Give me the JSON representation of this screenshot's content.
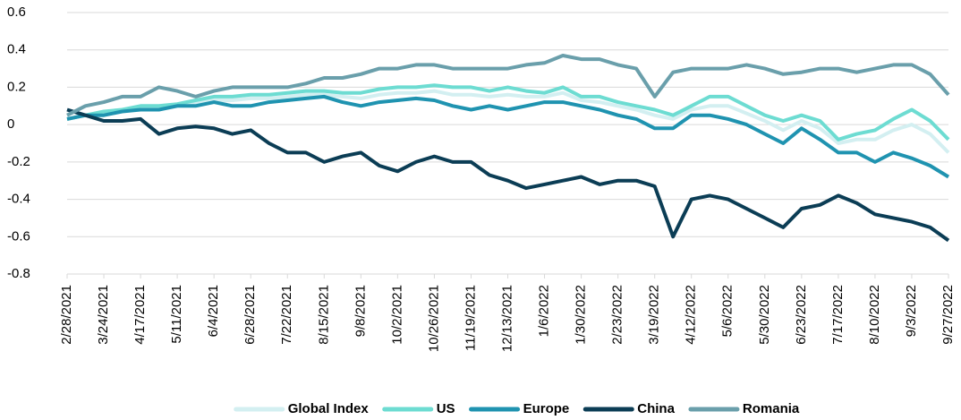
{
  "chart_data": {
    "type": "line",
    "categories": [
      "2/28/2021",
      null,
      "3/24/2021",
      null,
      "4/17/2021",
      null,
      "5/11/2021",
      null,
      "6/4/2021",
      null,
      "6/28/2021",
      null,
      "7/22/2021",
      null,
      "8/15/2021",
      null,
      "9/8/2021",
      null,
      "10/2/2021",
      null,
      "10/26/2021",
      null,
      "11/19/2021",
      null,
      "12/13/2021",
      null,
      "1/6/2022",
      null,
      "1/30/2022",
      null,
      "2/23/2022",
      null,
      "3/19/2022",
      null,
      "4/12/2022",
      null,
      "5/6/2022",
      null,
      "5/30/2022",
      null,
      "6/23/2022",
      null,
      "7/17/2022",
      null,
      "8/10/2022",
      null,
      "9/3/2022",
      null,
      "9/27/2022"
    ],
    "series": [
      {
        "name": "Global Index",
        "color": "#d3eff1",
        "values": [
          0.03,
          0.05,
          0.06,
          0.08,
          0.09,
          0.09,
          0.1,
          0.12,
          0.13,
          0.13,
          0.14,
          0.14,
          0.15,
          0.16,
          0.16,
          0.15,
          0.14,
          0.16,
          0.17,
          0.17,
          0.18,
          0.16,
          0.16,
          0.15,
          0.16,
          0.15,
          0.15,
          0.17,
          0.13,
          0.12,
          0.1,
          0.08,
          0.05,
          0.03,
          0.08,
          0.1,
          0.1,
          0.06,
          0.02,
          -0.03,
          0.02,
          -0.02,
          -0.1,
          -0.08,
          -0.08,
          -0.03,
          0,
          -0.05,
          -0.15
        ]
      },
      {
        "name": "US",
        "color": "#6ddcd2",
        "values": [
          0.03,
          0.05,
          0.07,
          0.08,
          0.1,
          0.1,
          0.11,
          0.13,
          0.15,
          0.15,
          0.16,
          0.16,
          0.17,
          0.18,
          0.18,
          0.17,
          0.17,
          0.19,
          0.2,
          0.2,
          0.21,
          0.2,
          0.2,
          0.18,
          0.2,
          0.18,
          0.17,
          0.2,
          0.15,
          0.15,
          0.12,
          0.1,
          0.08,
          0.05,
          0.1,
          0.15,
          0.15,
          0.1,
          0.05,
          0.02,
          0.05,
          0.02,
          -0.08,
          -0.05,
          -0.03,
          0.03,
          0.08,
          0.02,
          -0.08
        ]
      },
      {
        "name": "Europe",
        "color": "#1f93b0",
        "values": [
          0.03,
          0.05,
          0.05,
          0.07,
          0.08,
          0.08,
          0.1,
          0.1,
          0.12,
          0.1,
          0.1,
          0.12,
          0.13,
          0.14,
          0.15,
          0.12,
          0.1,
          0.12,
          0.13,
          0.14,
          0.13,
          0.1,
          0.08,
          0.1,
          0.08,
          0.1,
          0.12,
          0.12,
          0.1,
          0.08,
          0.05,
          0.03,
          -0.02,
          -0.02,
          0.05,
          0.05,
          0.03,
          0,
          -0.05,
          -0.1,
          -0.02,
          -0.08,
          -0.15,
          -0.15,
          -0.2,
          -0.15,
          -0.18,
          -0.22,
          -0.28
        ]
      },
      {
        "name": "China",
        "color": "#0b3d55",
        "values": [
          0.08,
          0.05,
          0.02,
          0.02,
          0.03,
          -0.05,
          -0.02,
          -0.01,
          -0.02,
          -0.05,
          -0.03,
          -0.1,
          -0.15,
          -0.15,
          -0.2,
          -0.17,
          -0.15,
          -0.22,
          -0.25,
          -0.2,
          -0.17,
          -0.2,
          -0.2,
          -0.27,
          -0.3,
          -0.34,
          -0.32,
          -0.3,
          -0.28,
          -0.32,
          -0.3,
          -0.3,
          -0.33,
          -0.6,
          -0.4,
          -0.38,
          -0.4,
          -0.45,
          -0.5,
          -0.55,
          -0.45,
          -0.43,
          -0.38,
          -0.42,
          -0.48,
          -0.5,
          -0.52,
          -0.55,
          -0.62
        ]
      },
      {
        "name": "Romania",
        "color": "#6a9fab",
        "values": [
          0.05,
          0.1,
          0.12,
          0.15,
          0.15,
          0.2,
          0.18,
          0.15,
          0.18,
          0.2,
          0.2,
          0.2,
          0.2,
          0.22,
          0.25,
          0.25,
          0.27,
          0.3,
          0.3,
          0.32,
          0.32,
          0.3,
          0.3,
          0.3,
          0.3,
          0.32,
          0.33,
          0.37,
          0.35,
          0.35,
          0.32,
          0.3,
          0.15,
          0.28,
          0.3,
          0.3,
          0.3,
          0.32,
          0.3,
          0.27,
          0.28,
          0.3,
          0.3,
          0.28,
          0.3,
          0.32,
          0.32,
          0.27,
          0.16
        ]
      }
    ],
    "ylim": [
      -0.8,
      0.6
    ],
    "yticks": [
      -0.8,
      -0.6,
      -0.4,
      -0.2,
      0,
      0.2,
      0.4,
      0.6
    ],
    "grid": true,
    "legend": "bottom"
  }
}
